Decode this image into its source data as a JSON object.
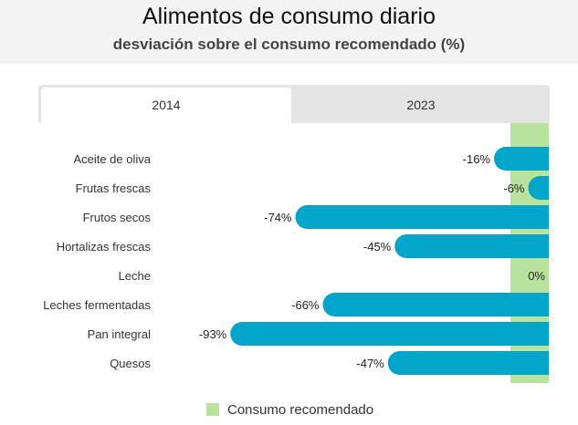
{
  "chart_data": {
    "type": "bar",
    "orientation": "horizontal",
    "title": "Alimentos de consumo diario",
    "subtitle": "desviación sobre el consumo recomendado (%)",
    "tabs": [
      {
        "label": "2014",
        "active": true
      },
      {
        "label": "2023",
        "active": false
      }
    ],
    "categories": [
      "Aceite de oliva",
      "Frutas frescas",
      "Frutos secos",
      "Hortalizas frescas",
      "Leche",
      "Leches fermentadas",
      "Pan integral",
      "Quesos"
    ],
    "values": [
      -16,
      -6,
      -74,
      -45,
      0,
      -66,
      -93,
      -47
    ],
    "value_labels": [
      "-16%",
      "-6%",
      "-74%",
      "-45%",
      "0%",
      "-66%",
      "-93%",
      "-47%"
    ],
    "xlim": [
      -100,
      0
    ],
    "legend": {
      "label": "Consumo recomendado",
      "position": "bottom"
    },
    "colors": {
      "bar": "#00a5c9",
      "recommended": "#b9e29c"
    }
  }
}
